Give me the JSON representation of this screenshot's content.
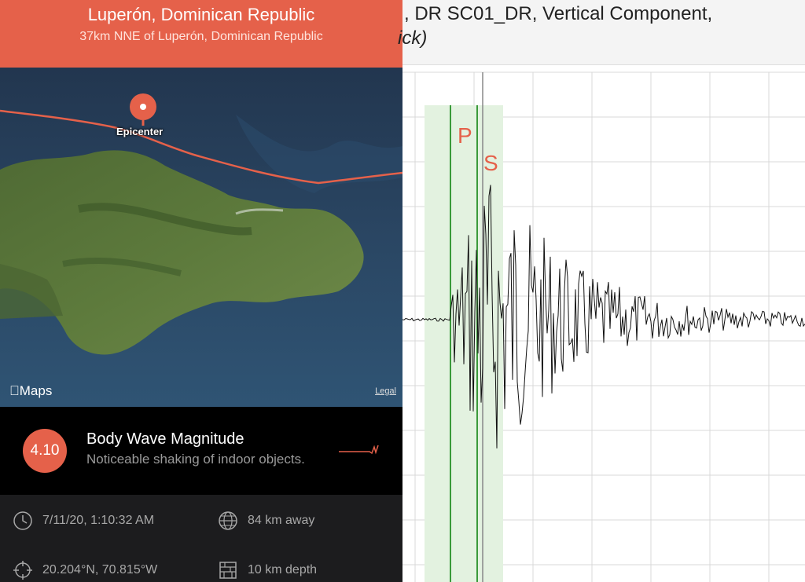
{
  "header": {
    "title": "Luperón, Dominican Republic",
    "subtitle": "37km NNE of Luperón, Dominican Republic"
  },
  "map": {
    "pin_label": "Epicenter",
    "maps_logo": "Maps",
    "legal": "Legal"
  },
  "magnitude": {
    "value": "4.10",
    "type": "Body Wave Magnitude",
    "description": "Noticeable shaking of indoor objects."
  },
  "info": {
    "time": "7/11/20, 1:10:32 AM",
    "distance": "84 km away",
    "coordinates": "20.204°N, 70.815°W",
    "depth": "10 km depth"
  },
  "seismogram": {
    "title_line1": ", DR SC01_DR, Vertical Component,",
    "title_line2": "ick)",
    "p_label": "P",
    "s_label": "S"
  },
  "colors": {
    "accent": "#e5614a",
    "pick_line": "#3a9a3a",
    "pick_band": "#e3f2e0",
    "phase_label": "#e5614a"
  }
}
